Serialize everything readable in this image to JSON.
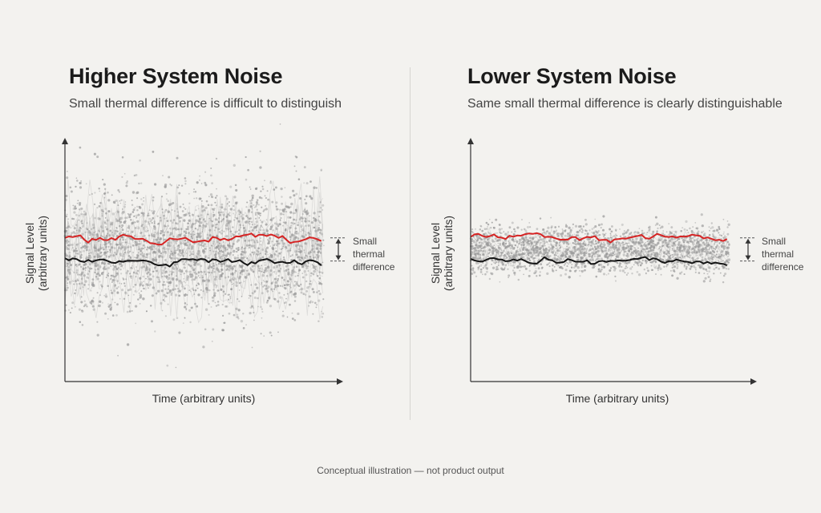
{
  "footnote": "Conceptual illustration — not product output",
  "colors": {
    "noise": "#9b9b9b",
    "red_series": "#d62424",
    "black_series": "#151515",
    "axis": "#333333"
  },
  "chart_data": [
    {
      "type": "scatter",
      "title": "Higher System Noise",
      "subtitle": "Small thermal difference is difficult to distinguish",
      "xlabel": "Time (arbitrary units)",
      "ylabel": "Signal Level\n(arbitrary units)",
      "xlim": [
        0,
        100
      ],
      "ylim": [
        0,
        100
      ],
      "series": [
        {
          "name": "",
          "color": "#d62424",
          "mean": 58,
          "spread": 1.5
        },
        {
          "name": "",
          "color": "#151515",
          "mean": 46,
          "spread": 1.5
        }
      ],
      "noise": {
        "spread": 18,
        "density": 2600
      },
      "annotation": {
        "lines": [
          "Small",
          "thermal",
          "difference"
        ],
        "from": 58,
        "to": 46
      }
    },
    {
      "type": "scatter",
      "title": "Lower System Noise",
      "subtitle": "Same small thermal difference is clearly distinguishable",
      "xlabel": "Time (arbitrary units)",
      "ylabel": "Signal Level\n(arbitrary units)",
      "xlim": [
        0,
        100
      ],
      "ylim": [
        0,
        100
      ],
      "series": [
        {
          "name": "",
          "color": "#d62424",
          "mean": 58,
          "spread": 1.2
        },
        {
          "name": "",
          "color": "#151515",
          "mean": 46,
          "spread": 1.2
        }
      ],
      "noise": {
        "spread": 5,
        "density": 2200
      },
      "annotation": {
        "lines": [
          "Small",
          "thermal",
          "difference"
        ],
        "from": 58,
        "to": 46
      }
    }
  ]
}
